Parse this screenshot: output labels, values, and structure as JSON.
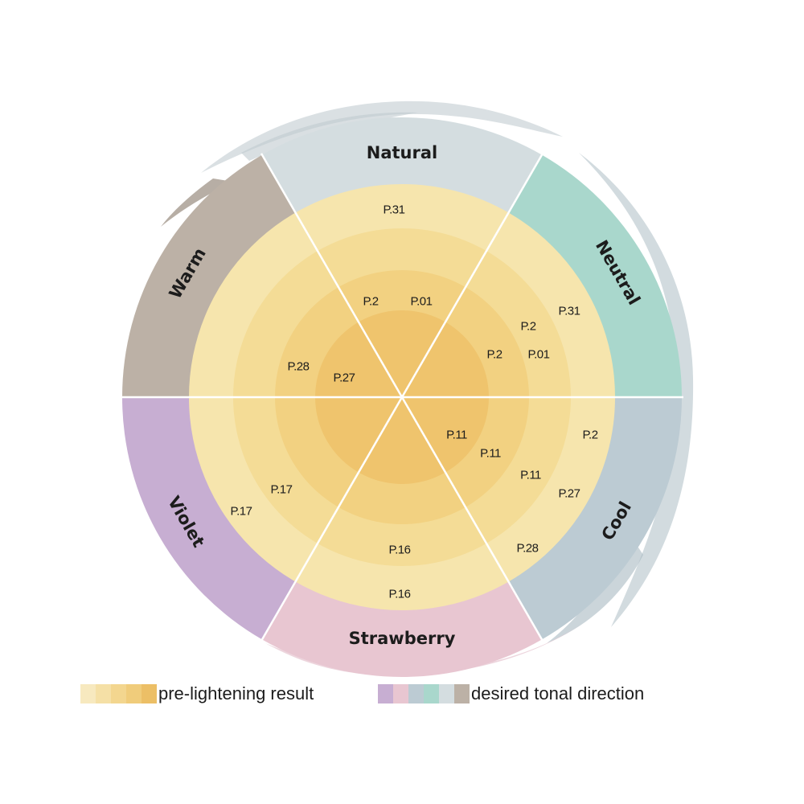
{
  "sectors": [
    {
      "label": "Natural",
      "color": "#d4dde0"
    },
    {
      "label": "Neutral",
      "color": "#a9d7cc"
    },
    {
      "label": "Cool",
      "color": "#bccbd3"
    },
    {
      "label": "Strawberry",
      "color": "#e8c6d1"
    },
    {
      "label": "Violet",
      "color": "#c7aed2"
    },
    {
      "label": "Warm",
      "color": "#bcb1a6"
    }
  ],
  "rings": [
    "#f6e5ad",
    "#f4dc96",
    "#f2d181",
    "#efc46d"
  ],
  "products": [
    {
      "text": "P.31"
    },
    {
      "text": "P.2"
    },
    {
      "text": "P.01"
    },
    {
      "text": "P.31"
    },
    {
      "text": "P.2"
    },
    {
      "text": "P.2"
    },
    {
      "text": "P.01"
    },
    {
      "text": "P.2"
    },
    {
      "text": "P.11"
    },
    {
      "text": "P.11"
    },
    {
      "text": "P.11"
    },
    {
      "text": "P.27"
    },
    {
      "text": "P.28"
    },
    {
      "text": "P.16"
    },
    {
      "text": "P.16"
    },
    {
      "text": "P.17"
    },
    {
      "text": "P.17"
    },
    {
      "text": "P.28"
    },
    {
      "text": "P.27"
    }
  ],
  "legend": {
    "pre_lightening": {
      "label": "pre-lightening result",
      "swatches": [
        "#f7e9bf",
        "#f5e0a6",
        "#f3d68f",
        "#f0cc7b",
        "#ecbf66"
      ]
    },
    "tonal_direction": {
      "label": "desired tonal direction",
      "swatches": [
        "#c7aed2",
        "#e8c6d1",
        "#bccbd3",
        "#a9d7cc",
        "#d4dde0",
        "#bcb1a6"
      ]
    }
  }
}
